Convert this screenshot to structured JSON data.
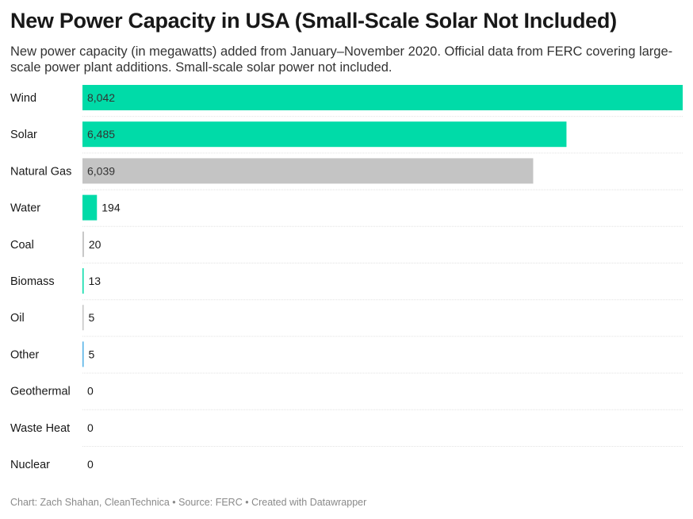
{
  "title": "New Power Capacity in USA (Small-Scale Solar Not Included)",
  "subtitle": "New power capacity (in megawatts) added from January–November 2020. Official data from FERC covering large-scale power plant additions. Small-scale solar power not included.",
  "footer": {
    "credit": "Chart: Zach Shahan, CleanTechnica",
    "separator1": " • ",
    "source": "Source: FERC",
    "separator2": " • ",
    "tool": "Created with Datawrapper"
  },
  "colors": {
    "renewable": "#00dba8",
    "fossil": "#c4c4c4",
    "other": "#4fb0e6",
    "gridline": "#e2e2e2",
    "label_text": "#181818"
  },
  "chart_data": {
    "type": "bar",
    "orientation": "horizontal",
    "unit": "megawatts",
    "xlim": [
      0,
      8042
    ],
    "categories": [
      "Wind",
      "Solar",
      "Natural Gas",
      "Water",
      "Coal",
      "Biomass",
      "Oil",
      "Other",
      "Geothermal",
      "Waste Heat",
      "Nuclear"
    ],
    "values": [
      8042,
      6485,
      6039,
      194,
      20,
      13,
      5,
      5,
      0,
      0,
      0
    ],
    "value_labels": [
      "8,042",
      "6,485",
      "6,039",
      "194",
      "20",
      "13",
      "5",
      "5",
      "0",
      "0",
      "0"
    ],
    "bar_colors": [
      "#00dba8",
      "#00dba8",
      "#c4c4c4",
      "#00dba8",
      "#c4c4c4",
      "#00dba8",
      "#c4c4c4",
      "#4fb0e6",
      "#00dba8",
      "#00dba8",
      "#c4c4c4"
    ],
    "grid": false,
    "legend": "none"
  }
}
